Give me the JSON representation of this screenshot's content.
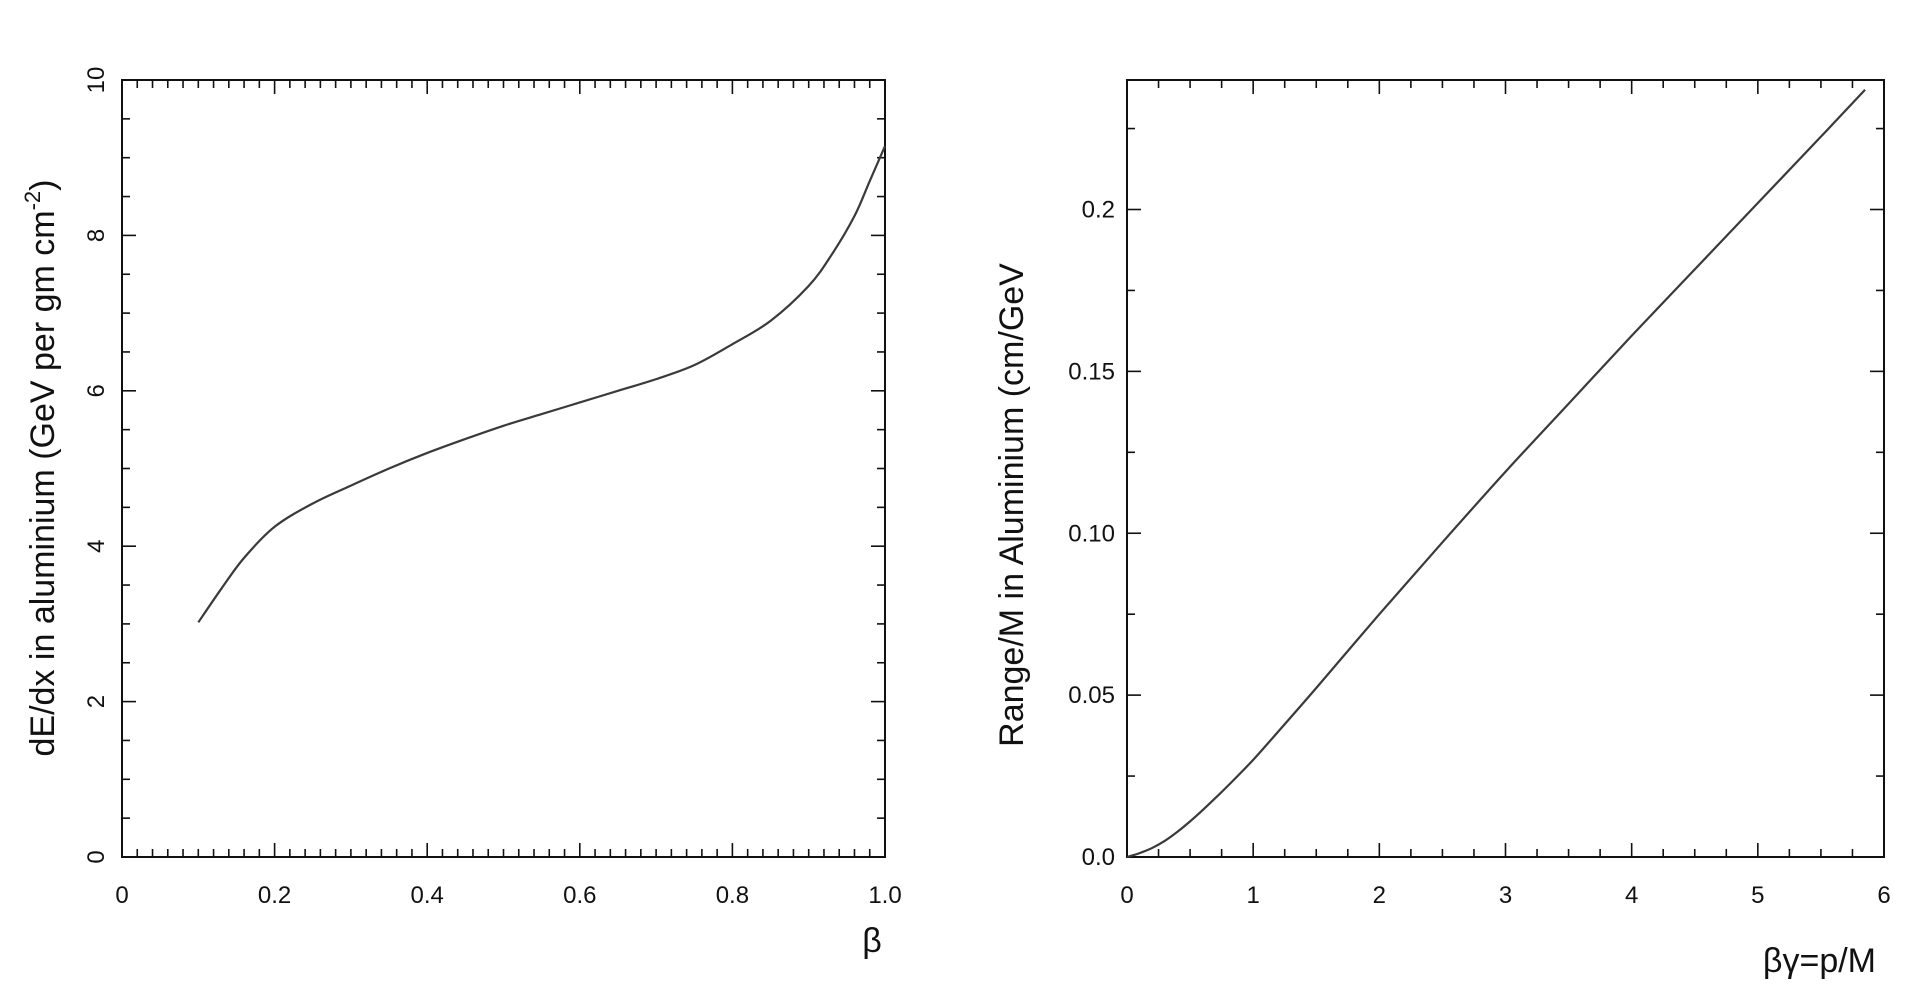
{
  "chart_data": [
    {
      "type": "line",
      "title": "",
      "xlabel": "β",
      "ylabel": "dE/dx in aluminium (GeV per gm cm",
      "ylabel_superscript": "-2",
      "ylabel_suffix": ")",
      "xlim": [
        0,
        1.0
      ],
      "ylim": [
        0,
        10
      ],
      "x_ticks": [
        0,
        0.2,
        0.4,
        0.6,
        0.8,
        1.0
      ],
      "x_tick_labels": [
        "0",
        "0.2",
        "0.4",
        "0.6",
        "0.8",
        "1.0"
      ],
      "y_ticks": [
        0,
        2,
        4,
        6,
        8,
        10
      ],
      "y_tick_labels": [
        "0",
        "2",
        "4",
        "6",
        "8",
        "10"
      ],
      "grid": false,
      "series": [
        {
          "x": [
            0.1,
            0.13,
            0.16,
            0.2,
            0.25,
            0.3,
            0.35,
            0.4,
            0.45,
            0.5,
            0.55,
            0.6,
            0.65,
            0.7,
            0.75,
            0.8,
            0.85,
            0.9,
            0.93,
            0.96,
            0.98,
            1.0
          ],
          "values": [
            3.02,
            3.45,
            3.85,
            4.25,
            4.55,
            4.78,
            5.0,
            5.2,
            5.38,
            5.55,
            5.7,
            5.85,
            6.0,
            6.15,
            6.33,
            6.6,
            6.9,
            7.35,
            7.75,
            8.25,
            8.7,
            9.15
          ]
        }
      ]
    },
    {
      "type": "line",
      "title": "",
      "xlabel": "βγ=p/M",
      "ylabel": "Range/M in Aluminium (cm/GeV",
      "xlim": [
        0,
        6
      ],
      "ylim": [
        0,
        0.24
      ],
      "x_ticks": [
        0,
        1,
        2,
        3,
        4,
        5,
        6
      ],
      "x_tick_labels": [
        "0",
        "1",
        "2",
        "3",
        "4",
        "5",
        "6"
      ],
      "y_ticks": [
        0,
        0.05,
        0.1,
        0.15,
        0.2
      ],
      "y_tick_labels": [
        "0.0",
        "0.05",
        "0.10",
        "0.15",
        "0.2"
      ],
      "grid": false,
      "series": [
        {
          "x": [
            0,
            0.1,
            0.2,
            0.3,
            0.4,
            0.5,
            0.6,
            0.7,
            0.8,
            1.0,
            1.2,
            1.5,
            2.0,
            2.5,
            3.0,
            3.5,
            4.0,
            4.5,
            5.0,
            5.5,
            5.85
          ],
          "values": [
            0,
            0.0012,
            0.0028,
            0.005,
            0.0078,
            0.011,
            0.0145,
            0.0182,
            0.022,
            0.03,
            0.0388,
            0.0522,
            0.075,
            0.0972,
            0.119,
            0.14,
            0.161,
            0.1815,
            0.202,
            0.2225,
            0.237
          ]
        }
      ]
    }
  ]
}
